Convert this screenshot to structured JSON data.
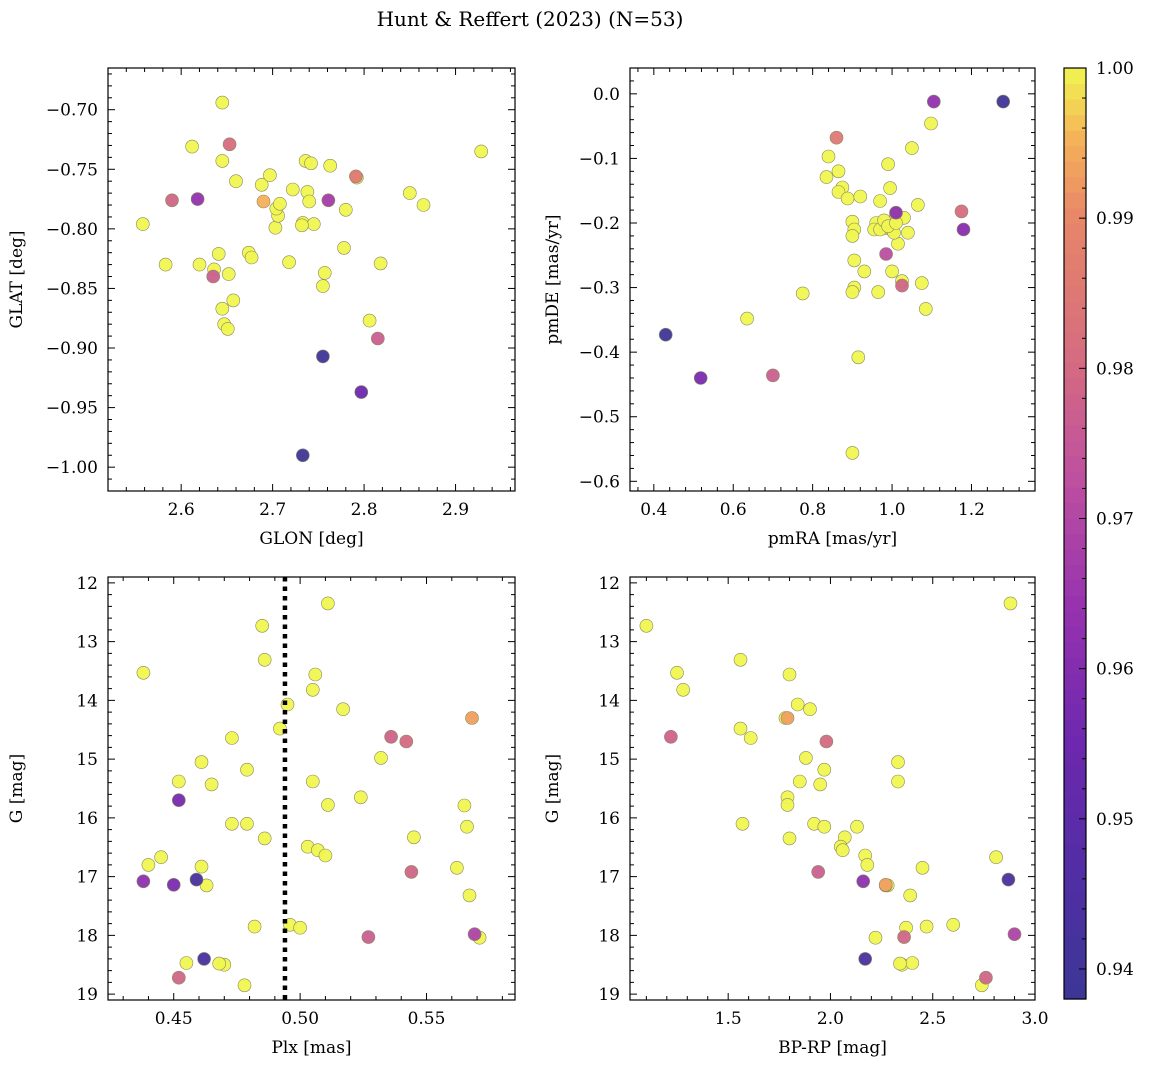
{
  "figure": {
    "title": "Hunt & Reffert (2023) (N=53)"
  },
  "colorbar": {
    "colormap": "plasma",
    "vmin": 0.938,
    "vmax": 1.0,
    "ticks": [
      0.94,
      0.95,
      0.96,
      0.97,
      0.98,
      0.99,
      1.0
    ],
    "tick_labels": [
      "0.94",
      "0.95",
      "0.96",
      "0.97",
      "0.98",
      "0.99",
      "1.00"
    ]
  },
  "chart_data": [
    {
      "id": "glon_glat",
      "type": "scatter",
      "xlabel": "GLON [deg]",
      "ylabel": "GLAT [deg]",
      "xlim": [
        2.52,
        2.965
      ],
      "ylim": [
        -1.02,
        -0.665
      ],
      "y_inverted": false,
      "xticks": [
        2.6,
        2.7,
        2.8,
        2.9
      ],
      "xtick_labels": [
        "2.6",
        "2.7",
        "2.8",
        "2.9"
      ],
      "yticks": [
        -0.7,
        -0.75,
        -0.8,
        -0.85,
        -0.9,
        -0.95,
        -1.0
      ],
      "ytick_labels": [
        "−0.70",
        "−0.75",
        "−0.80",
        "−0.85",
        "−0.90",
        "−0.95",
        "−1.00"
      ],
      "x": [
        2.645,
        2.612,
        2.653,
        2.645,
        2.66,
        2.59,
        2.618,
        2.558,
        2.583,
        2.62,
        2.635,
        2.641,
        2.652,
        2.636,
        2.645,
        2.647,
        2.651,
        2.657,
        2.674,
        2.677,
        2.688,
        2.69,
        2.697,
        2.703,
        2.706,
        2.704,
        2.708,
        2.718,
        2.722,
        2.733,
        2.736,
        2.738,
        2.74,
        2.742,
        2.745,
        2.732,
        2.755,
        2.757,
        2.761,
        2.763,
        2.78,
        2.792,
        2.791,
        2.778,
        2.818,
        2.806,
        2.815,
        2.85,
        2.865,
        2.928,
        2.755,
        2.797,
        2.733
      ],
      "y": [
        -0.694,
        -0.731,
        -0.729,
        -0.743,
        -0.76,
        -0.776,
        -0.775,
        -0.796,
        -0.83,
        -0.83,
        -0.84,
        -0.821,
        -0.838,
        -0.834,
        -0.867,
        -0.88,
        -0.884,
        -0.86,
        -0.82,
        -0.824,
        -0.763,
        -0.777,
        -0.755,
        -0.799,
        -0.789,
        -0.783,
        -0.779,
        -0.828,
        -0.767,
        -0.795,
        -0.743,
        -0.769,
        -0.777,
        -0.745,
        -0.796,
        -0.797,
        -0.848,
        -0.837,
        -0.776,
        -0.747,
        -0.784,
        -0.757,
        -0.756,
        -0.816,
        -0.829,
        -0.877,
        -0.892,
        -0.77,
        -0.78,
        -0.735,
        -0.907,
        -0.937,
        -0.99
      ],
      "c": [
        1,
        1,
        0.981,
        1,
        1,
        0.979,
        0.963,
        1,
        1,
        1,
        0.977,
        1,
        1,
        1,
        1,
        1,
        1,
        1,
        1,
        1,
        1,
        0.995,
        1,
        1,
        1,
        1,
        1,
        1,
        1,
        1,
        1,
        1,
        1,
        1,
        1,
        1,
        1,
        1,
        0.967,
        1,
        1,
        1,
        0.985,
        1,
        1,
        1,
        0.977,
        1,
        1,
        1,
        0.939,
        0.955,
        0.939
      ]
    },
    {
      "id": "pm",
      "type": "scatter",
      "xlabel": "pmRA [mas/yr]",
      "ylabel": "pmDE [mas/yr]",
      "xlim": [
        0.34,
        1.36
      ],
      "ylim": [
        -0.615,
        0.04
      ],
      "y_inverted": false,
      "xticks": [
        0.4,
        0.6,
        0.8,
        1.0,
        1.2
      ],
      "xtick_labels": [
        "0.4",
        "0.6",
        "0.8",
        "1.0",
        "1.2"
      ],
      "yticks": [
        0.0,
        -0.1,
        -0.2,
        -0.3,
        -0.4,
        -0.5,
        -0.6
      ],
      "ytick_labels": [
        "0.0",
        "−0.1",
        "−0.2",
        "−0.3",
        "−0.4",
        "−0.5",
        "−0.6"
      ],
      "x": [
        1.105,
        1.28,
        1.098,
        0.86,
        1.05,
        0.84,
        0.99,
        0.835,
        0.875,
        0.865,
        0.888,
        0.92,
        0.995,
        0.97,
        1.065,
        1.01,
        1.03,
        0.9,
        0.905,
        0.9,
        0.96,
        0.955,
        0.985,
        1.0,
        1.04,
        1.015,
        1.005,
        0.905,
        0.93,
        0.905,
        1.0,
        1.075,
        0.9,
        0.965,
        1.025,
        1.085,
        0.775,
        0.635,
        0.915,
        0.9,
        0.43,
        0.518,
        0.7,
        0.865,
        1.175,
        1.18,
        1.01,
        0.985,
        1.025,
        0.97,
        0.98,
        0.99,
        1.01
      ],
      "y": [
        -0.012,
        -0.012,
        -0.046,
        -0.068,
        -0.084,
        -0.097,
        -0.109,
        -0.129,
        -0.145,
        -0.152,
        -0.162,
        -0.159,
        -0.146,
        -0.166,
        -0.172,
        -0.188,
        -0.192,
        -0.198,
        -0.21,
        -0.22,
        -0.2,
        -0.21,
        -0.208,
        -0.21,
        -0.215,
        -0.232,
        -0.215,
        -0.258,
        -0.275,
        -0.3,
        -0.275,
        -0.293,
        -0.307,
        -0.307,
        -0.29,
        -0.333,
        -0.309,
        -0.348,
        -0.408,
        -0.556,
        -0.373,
        -0.44,
        -0.436,
        -0.12,
        -0.182,
        -0.21,
        -0.184,
        -0.248,
        -0.297,
        -0.21,
        -0.196,
        -0.205,
        -0.2
      ],
      "c": [
        0.963,
        0.939,
        1,
        0.985,
        1,
        1,
        1,
        1,
        1,
        1,
        1,
        1,
        1,
        1,
        1,
        1,
        1,
        1,
        1,
        1,
        1,
        1,
        1,
        1,
        1,
        1,
        1,
        1,
        1,
        1,
        1,
        1,
        1,
        1,
        1,
        1,
        1,
        1,
        1,
        1,
        0.939,
        0.958,
        0.977,
        1,
        0.981,
        0.961,
        0.962,
        0.972,
        0.979,
        1,
        1,
        1,
        1
      ]
    },
    {
      "id": "plx_g",
      "type": "scatter",
      "xlabel": "Plx [mas]",
      "ylabel": "G [mag]",
      "xlim": [
        0.424,
        0.585
      ],
      "ylim": [
        19.1,
        11.9
      ],
      "y_inverted": true,
      "vline": {
        "x": 0.494,
        "style": "dotted"
      },
      "xticks": [
        0.45,
        0.5,
        0.55
      ],
      "xtick_labels": [
        "0.45",
        "0.50",
        "0.55"
      ],
      "yticks": [
        12,
        13,
        14,
        15,
        16,
        17,
        18,
        19
      ],
      "ytick_labels": [
        "12",
        "13",
        "14",
        "15",
        "16",
        "17",
        "18",
        "19"
      ],
      "x": [
        0.511,
        0.485,
        0.438,
        0.486,
        0.506,
        0.505,
        0.495,
        0.517,
        0.492,
        0.568,
        0.473,
        0.461,
        0.452,
        0.465,
        0.479,
        0.505,
        0.511,
        0.524,
        0.536,
        0.542,
        0.532,
        0.565,
        0.473,
        0.479,
        0.486,
        0.545,
        0.566,
        0.503,
        0.507,
        0.51,
        0.445,
        0.44,
        0.461,
        0.463,
        0.562,
        0.567,
        0.482,
        0.496,
        0.5,
        0.47,
        0.569,
        0.571,
        0.455,
        0.468,
        0.478,
        0.452,
        0.452,
        0.438,
        0.45,
        0.459,
        0.462,
        0.544,
        0.527
      ],
      "y": [
        12.35,
        12.73,
        13.53,
        13.31,
        13.56,
        13.82,
        14.07,
        14.15,
        14.48,
        14.3,
        14.64,
        15.05,
        15.38,
        15.43,
        15.18,
        15.38,
        15.78,
        15.65,
        14.62,
        14.7,
        14.98,
        15.79,
        16.1,
        16.1,
        16.35,
        16.33,
        16.15,
        16.49,
        16.55,
        16.64,
        16.67,
        16.8,
        16.83,
        17.15,
        16.85,
        17.32,
        17.85,
        17.82,
        17.87,
        18.5,
        17.98,
        18.04,
        18.47,
        18.48,
        18.85,
        18.72,
        15.7,
        17.08,
        17.14,
        17.05,
        18.4,
        16.92,
        18.03
      ],
      "c": [
        1,
        1,
        1,
        1,
        1,
        1,
        1,
        1,
        1,
        0.993,
        1,
        1,
        1,
        1,
        1,
        1,
        1,
        1,
        0.978,
        0.98,
        1,
        1,
        1,
        1,
        1,
        1,
        1,
        1,
        1,
        1,
        1,
        1,
        1,
        1,
        1,
        1,
        1,
        1,
        1,
        1,
        0.969,
        1,
        1,
        1,
        1,
        0.979,
        0.957,
        0.962,
        0.958,
        0.943,
        0.943,
        0.979,
        0.977
      ]
    },
    {
      "id": "cmd",
      "type": "scatter",
      "xlabel": "BP-RP [mag]",
      "ylabel": "G [mag]",
      "xlim": [
        1.02,
        3.0
      ],
      "ylim": [
        19.1,
        11.9
      ],
      "y_inverted": true,
      "xticks": [
        1.5,
        2.0,
        2.5,
        3.0
      ],
      "xtick_labels": [
        "1.5",
        "2.0",
        "2.5",
        "3.0"
      ],
      "yticks": [
        12,
        13,
        14,
        15,
        16,
        17,
        18,
        19
      ],
      "ytick_labels": [
        "12",
        "13",
        "14",
        "15",
        "16",
        "17",
        "18",
        "19"
      ],
      "x": [
        2.88,
        1.1,
        1.25,
        1.28,
        1.56,
        1.8,
        1.84,
        1.9,
        1.78,
        1.56,
        1.61,
        1.88,
        1.97,
        1.95,
        1.79,
        1.79,
        1.85,
        1.92,
        1.97,
        2.13,
        2.33,
        2.33,
        1.57,
        1.8,
        2.07,
        2.05,
        2.06,
        2.17,
        2.18,
        2.81,
        2.45,
        2.39,
        2.28,
        2.27,
        2.37,
        2.22,
        2.35,
        2.47,
        2.6,
        2.4,
        2.34,
        2.74,
        1.79,
        1.98,
        1.22,
        1.94,
        2.16,
        2.27,
        2.36,
        2.9,
        2.76,
        2.87,
        2.17
      ],
      "y": [
        12.35,
        12.73,
        13.53,
        13.82,
        13.31,
        13.56,
        14.07,
        14.15,
        14.3,
        14.48,
        14.64,
        14.98,
        15.18,
        15.43,
        15.65,
        15.78,
        15.38,
        16.1,
        16.15,
        16.15,
        15.05,
        15.38,
        16.1,
        16.35,
        16.33,
        16.49,
        16.55,
        16.64,
        16.8,
        16.67,
        16.85,
        17.32,
        17.15,
        17.15,
        17.87,
        18.04,
        18.5,
        17.85,
        17.82,
        18.47,
        18.48,
        18.85,
        14.3,
        14.7,
        14.62,
        16.92,
        17.08,
        17.14,
        18.03,
        17.98,
        18.72,
        17.05,
        18.4
      ],
      "c": [
        1,
        1,
        1,
        1,
        1,
        1,
        1,
        1,
        1,
        1,
        1,
        1,
        1,
        1,
        1,
        1,
        1,
        1,
        1,
        1,
        1,
        1,
        1,
        1,
        1,
        1,
        1,
        1,
        1,
        1,
        1,
        1,
        1,
        1,
        1,
        1,
        1,
        1,
        1,
        1,
        1,
        1,
        0.993,
        0.98,
        0.978,
        0.977,
        0.962,
        0.993,
        0.979,
        0.969,
        0.979,
        0.943,
        0.943
      ]
    }
  ]
}
